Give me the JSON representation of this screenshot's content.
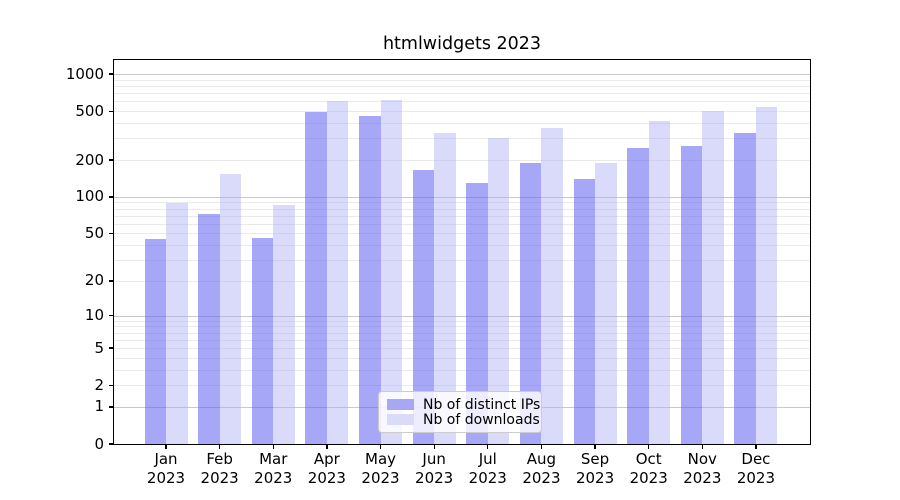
{
  "chart_data": {
    "type": "bar",
    "title": "htmlwidgets 2023",
    "categories": [
      "Jan 2023",
      "Feb 2023",
      "Mar 2023",
      "Apr 2023",
      "May 2023",
      "Jun 2023",
      "Jul 2023",
      "Aug 2023",
      "Sep 2023",
      "Oct 2023",
      "Nov 2023",
      "Dec 2023"
    ],
    "months": [
      "Jan",
      "Feb",
      "Mar",
      "Apr",
      "May",
      "Jun",
      "Jul",
      "Aug",
      "Sep",
      "Oct",
      "Nov",
      "Dec"
    ],
    "year_label": "2023",
    "series": [
      {
        "name": "Nb of distinct IPs",
        "values": [
          45,
          72,
          46,
          495,
          460,
          165,
          130,
          190,
          140,
          250,
          260,
          330
        ],
        "fill": "rgba(94,94,242,0.55)",
        "swatch": "#a7a7f3"
      },
      {
        "name": "Nb of downloads",
        "values": [
          89,
          155,
          86,
          600,
          615,
          330,
          300,
          365,
          190,
          415,
          500,
          535
        ],
        "fill": "rgba(173,173,246,0.45)",
        "swatch": "#dadaf9"
      }
    ],
    "y_axis": {
      "scale": "log1p",
      "tick_labels": [
        1000,
        500,
        200,
        100,
        50,
        20,
        10,
        5,
        2,
        1,
        0
      ],
      "ylim": [
        0,
        1300
      ]
    },
    "grid": {
      "horizontal": true,
      "vertical": false,
      "major_color": "#c9c9c9",
      "minor_color": "#eaeaea"
    },
    "legend": {
      "position": "lower center"
    }
  }
}
